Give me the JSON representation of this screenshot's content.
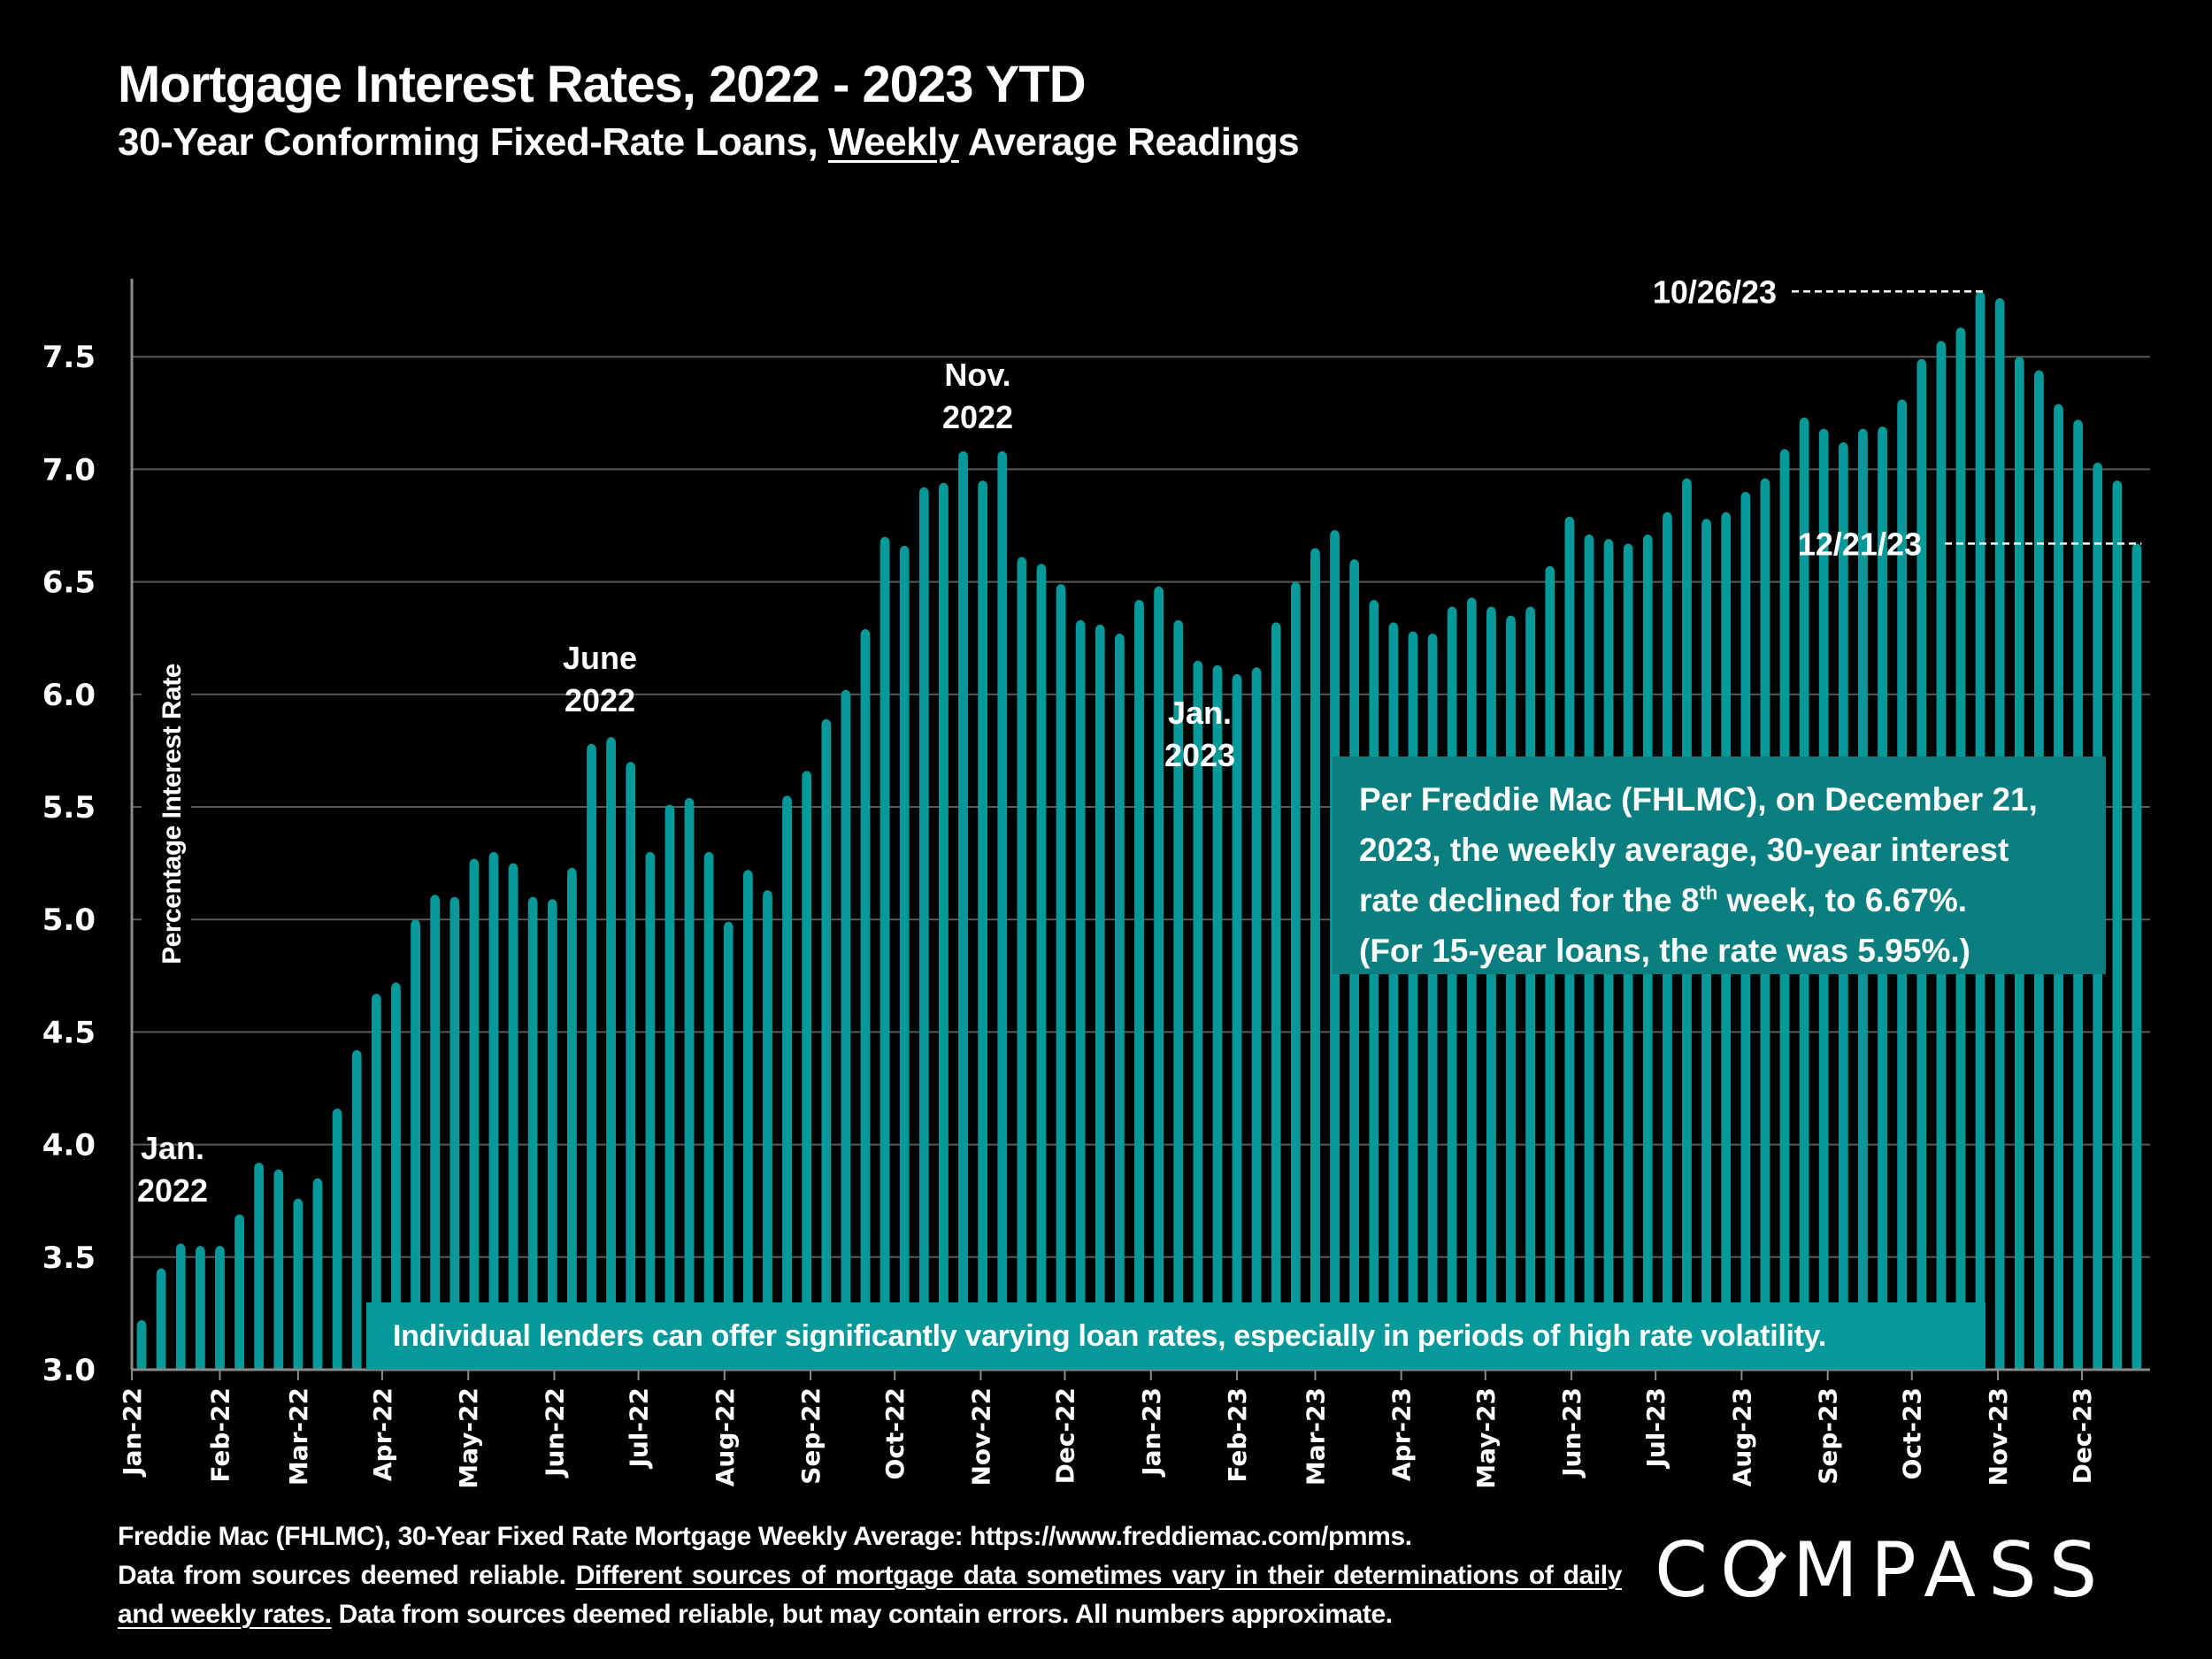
{
  "header": {
    "title": "Mortgage Interest Rates, 2022 - 2023 YTD",
    "subtitle_pre": "30-Year Conforming Fixed-Rate Loans, ",
    "subtitle_underlined": "Weekly",
    "subtitle_post": " Average Readings"
  },
  "chart_data": {
    "type": "bar",
    "title": "Mortgage Interest Rates, 2022 - 2023 YTD",
    "subtitle": "30-Year Conforming Fixed-Rate Loans, Weekly Average Readings",
    "xlabel": "",
    "ylabel": "Percentage Interest  Rate",
    "ylim": [
      3.0,
      7.85
    ],
    "yticks": [
      3.0,
      3.5,
      4.0,
      4.5,
      5.0,
      5.5,
      6.0,
      6.5,
      7.0,
      7.5
    ],
    "ytick_labels": [
      "3.0",
      "3.5",
      "4.0",
      "4.5",
      "5.0",
      "5.5",
      "6.0",
      "6.5",
      "7.0",
      "7.5"
    ],
    "grid": true,
    "bar_color": "#05999a",
    "month_ticks": [
      {
        "label": "Jan-22",
        "week_index": 0
      },
      {
        "label": "Feb-22",
        "week_index": 4.5
      },
      {
        "label": "Mar-22",
        "week_index": 8.5
      },
      {
        "label": "Apr-22",
        "week_index": 12.8
      },
      {
        "label": "May-22",
        "week_index": 17.2
      },
      {
        "label": "Jun-22",
        "week_index": 21.6
      },
      {
        "label": "Jul-22",
        "week_index": 25.9
      },
      {
        "label": "Aug-22",
        "week_index": 30.3
      },
      {
        "label": "Sep-22",
        "week_index": 34.7
      },
      {
        "label": "Oct-22",
        "week_index": 39.0
      },
      {
        "label": "Nov-22",
        "week_index": 43.4
      },
      {
        "label": "Dec-22",
        "week_index": 47.7
      },
      {
        "label": "Jan-23",
        "week_index": 52.1
      },
      {
        "label": "Feb-23",
        "week_index": 56.5
      },
      {
        "label": "Mar-23",
        "week_index": 60.5
      },
      {
        "label": "Apr-23",
        "week_index": 64.9
      },
      {
        "label": "May-23",
        "week_index": 69.2
      },
      {
        "label": "Jun-23",
        "week_index": 73.6
      },
      {
        "label": "Jul-23",
        "week_index": 77.9
      },
      {
        "label": "Aug-23",
        "week_index": 82.3
      },
      {
        "label": "Sep-23",
        "week_index": 86.7
      },
      {
        "label": "Oct-23",
        "week_index": 91.0
      },
      {
        "label": "Nov-23",
        "week_index": 95.4
      },
      {
        "label": "Dec-23",
        "week_index": 99.7
      }
    ],
    "series": [
      {
        "name": "30-Year Fixed Rate Weekly Average",
        "values": [
          3.22,
          3.45,
          3.56,
          3.55,
          3.55,
          3.69,
          3.92,
          3.89,
          3.76,
          3.85,
          4.16,
          4.42,
          4.67,
          4.72,
          5.0,
          5.11,
          5.1,
          5.27,
          5.3,
          5.25,
          5.1,
          5.09,
          5.23,
          5.78,
          5.81,
          5.7,
          5.3,
          5.51,
          5.54,
          5.3,
          4.99,
          5.22,
          5.13,
          5.55,
          5.66,
          5.89,
          6.02,
          6.29,
          6.7,
          6.66,
          6.92,
          6.94,
          7.08,
          6.95,
          7.08,
          6.61,
          6.58,
          6.49,
          6.33,
          6.31,
          6.27,
          6.42,
          6.48,
          6.33,
          6.15,
          6.13,
          6.09,
          6.12,
          6.32,
          6.5,
          6.65,
          6.73,
          6.6,
          6.42,
          6.32,
          6.28,
          6.27,
          6.39,
          6.43,
          6.39,
          6.35,
          6.39,
          6.57,
          6.79,
          6.71,
          6.69,
          6.67,
          6.71,
          6.81,
          6.96,
          6.78,
          6.81,
          6.9,
          6.96,
          7.09,
          7.23,
          7.18,
          7.12,
          7.18,
          7.19,
          7.31,
          7.49,
          7.57,
          7.63,
          7.79,
          7.76,
          7.5,
          7.44,
          7.29,
          7.22,
          7.03,
          6.95,
          6.67
        ]
      }
    ],
    "annotations": [
      {
        "lines": [
          "Jan.",
          "2022"
        ],
        "near_week_index": 1
      },
      {
        "lines": [
          "June",
          "2022"
        ],
        "near_week_index": 24
      },
      {
        "lines": [
          "Nov.",
          "2022"
        ],
        "near_week_index": 43
      },
      {
        "lines": [
          "Jan.",
          "2023"
        ],
        "near_week_index": 54
      },
      {
        "label": "10/26/23",
        "week_index": 94,
        "value": 7.79,
        "style": "dashed-leader"
      },
      {
        "label": "12/21/23",
        "week_index": 102,
        "value": 6.67,
        "style": "dashed-leader"
      }
    ]
  },
  "info_box": {
    "line1": "Per Freddie Mac (FHLMC), on December 21,",
    "line2": "2023, the weekly average, 30-year interest",
    "line3_pre": "rate declined for the 8",
    "line3_sup": "th",
    "line3_post": " week, to 6.67%.",
    "line4": "(For 15-year loans, the rate was 5.95%.)"
  },
  "banner": {
    "text": "Individual lenders can offer significantly varying loan rates, especially in periods of high rate volatility."
  },
  "footer": {
    "line1": "Freddie Mac (FHLMC), 30-Year Fixed Rate Mortgage Weekly Average:  https://www.freddiemac.com/pmms.",
    "line2_pre": "Data from sources deemed reliable. ",
    "underlined": "Different sources of mortgage data sometimes vary in their determinations of daily and weekly rates.",
    "post": " Data from sources deemed reliable, but may contain errors. All numbers approximate."
  },
  "logo": {
    "text": "COMPASS"
  }
}
